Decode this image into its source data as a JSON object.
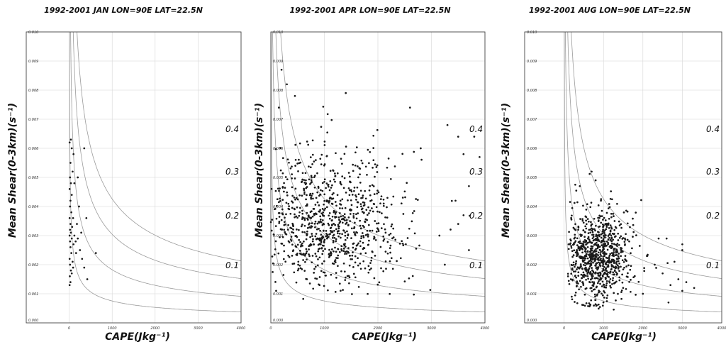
{
  "chart_data": [
    {
      "type": "scatter",
      "title": "1992-2001 JAN LON=90E LAT=22.5N",
      "xlabel": "CAPE(Jkg⁻¹)",
      "ylabel": "Mean Shear(0-3km)(s⁻¹)",
      "xlim": [
        -1000,
        4000
      ],
      "ylim": [
        0,
        0.01
      ],
      "xticks": [
        "0",
        "1000",
        "2000",
        "3000",
        "4000"
      ],
      "yticks": [
        "0.000",
        "0.001",
        "0.002",
        "0.003",
        "0.004",
        "0.005",
        "0.006",
        "0.007",
        "0.008",
        "0.009",
        "0.010"
      ],
      "grid": true,
      "contours": [
        {
          "label": "0.1",
          "value": 0.1,
          "label_at": [
            0.1,
            0.0019
          ]
        },
        {
          "label": "0.2",
          "value": 0.2,
          "label_at": [
            0.1,
            0.0034
          ]
        },
        {
          "label": "0.3",
          "value": 0.3,
          "label_at": [
            0.1,
            0.0049
          ]
        },
        {
          "label": "0.4",
          "value": 0.4,
          "label_at": [
            0.1,
            0.0064
          ]
        }
      ],
      "points": [
        [
          10,
          0.0013
        ],
        [
          30,
          0.0014
        ],
        [
          15,
          0.0016
        ],
        [
          40,
          0.0018
        ],
        [
          20,
          0.002
        ],
        [
          60,
          0.0017
        ],
        [
          10,
          0.0022
        ],
        [
          50,
          0.0024
        ],
        [
          30,
          0.0026
        ],
        [
          80,
          0.0021
        ],
        [
          20,
          0.0028
        ],
        [
          60,
          0.0029
        ],
        [
          10,
          0.003
        ],
        [
          100,
          0.0027
        ],
        [
          40,
          0.0031
        ],
        [
          20,
          0.0032
        ],
        [
          150,
          0.0028
        ],
        [
          70,
          0.0033
        ],
        [
          30,
          0.0034
        ],
        [
          10,
          0.0036
        ],
        [
          120,
          0.003
        ],
        [
          50,
          0.0038
        ],
        [
          20,
          0.004
        ],
        [
          90,
          0.0036
        ],
        [
          30,
          0.0042
        ],
        [
          60,
          0.0044
        ],
        [
          10,
          0.0046
        ],
        [
          200,
          0.0029
        ],
        [
          250,
          0.0025
        ],
        [
          300,
          0.0022
        ],
        [
          350,
          0.0019
        ],
        [
          280,
          0.0031
        ],
        [
          180,
          0.0034
        ],
        [
          40,
          0.0048
        ],
        [
          20,
          0.005
        ],
        [
          80,
          0.0052
        ],
        [
          120,
          0.0048
        ],
        [
          200,
          0.005
        ],
        [
          30,
          0.0055
        ],
        [
          100,
          0.0058
        ],
        [
          10,
          0.0062
        ],
        [
          40,
          0.0063
        ],
        [
          60,
          0.006
        ],
        [
          400,
          0.0036
        ],
        [
          420,
          0.0015
        ],
        [
          620,
          0.0024
        ],
        [
          350,
          0.006
        ],
        [
          230,
          0.004
        ],
        [
          160,
          0.0024
        ],
        [
          90,
          0.0019
        ]
      ]
    },
    {
      "type": "scatter",
      "title": "1992-2001 APR LON=90E LAT=22.5N",
      "xlabel": "CAPE(Jkg⁻¹)",
      "ylabel": "Mean Shear(0-3km)(s⁻¹)",
      "xlim": [
        0,
        4000
      ],
      "ylim": [
        0,
        0.01
      ],
      "xticks": [
        "0",
        "1000",
        "2000",
        "3000",
        "4000"
      ],
      "yticks": [
        "0.000",
        "0.001",
        "0.002",
        "0.003",
        "0.004",
        "0.005",
        "0.006",
        "0.007",
        "0.008",
        "0.009",
        "0.010"
      ],
      "grid": true,
      "contours": [
        {
          "label": "0.1",
          "value": 0.1,
          "label_at": [
            0.1,
            0.0019
          ]
        },
        {
          "label": "0.2",
          "value": 0.2,
          "label_at": [
            0.1,
            0.0034
          ]
        },
        {
          "label": "0.3",
          "value": 0.3,
          "label_at": [
            0.1,
            0.0049
          ]
        },
        {
          "label": "0.4",
          "value": 0.4,
          "label_at": [
            0.1,
            0.0064
          ]
        }
      ],
      "cloud": {
        "count": 900,
        "x_mean": 1050,
        "x_sd": 650,
        "y_mean": 0.0035,
        "y_sd": 0.0012,
        "x_min": 0,
        "x_max": 3900,
        "y_min": 0.0008,
        "y_max": 0.0088
      },
      "extra_points": [
        [
          200,
          0.0087
        ],
        [
          300,
          0.0082
        ],
        [
          450,
          0.0078
        ],
        [
          150,
          0.0074
        ],
        [
          1400,
          0.0079
        ],
        [
          2600,
          0.0074
        ],
        [
          3300,
          0.0068
        ],
        [
          3500,
          0.0064
        ],
        [
          3800,
          0.0064
        ],
        [
          3600,
          0.0058
        ],
        [
          2800,
          0.006
        ],
        [
          3900,
          0.0057
        ],
        [
          3700,
          0.0047
        ],
        [
          3500,
          0.0034
        ],
        [
          3700,
          0.0025
        ],
        [
          3150,
          0.003
        ],
        [
          3450,
          0.0042
        ],
        [
          3250,
          0.002
        ],
        [
          100,
          0.0011
        ],
        [
          3600,
          0.0037
        ]
      ]
    },
    {
      "type": "scatter",
      "title": "1992-2001 AUG LON=90E LAT=22.5N",
      "xlabel": "CAPE(Jkg⁻¹)",
      "ylabel": "Mean Shear(0-3km)(s⁻¹)",
      "xlim": [
        -1000,
        4000
      ],
      "ylim": [
        0,
        0.01
      ],
      "xticks": [
        "0",
        "1000",
        "2000",
        "3000",
        "4000"
      ],
      "yticks": [
        "0.000",
        "0.001",
        "0.002",
        "0.003",
        "0.004",
        "0.005",
        "0.006",
        "0.007",
        "0.008",
        "0.009",
        "0.010"
      ],
      "grid": true,
      "contours": [
        {
          "label": "0.1",
          "value": 0.1,
          "label_at": [
            0.1,
            0.0019
          ]
        },
        {
          "label": "0.2",
          "value": 0.2,
          "label_at": [
            0.1,
            0.0034
          ]
        },
        {
          "label": "0.3",
          "value": 0.3,
          "label_at": [
            0.1,
            0.0049
          ]
        },
        {
          "label": "0.4",
          "value": 0.4,
          "label_at": [
            0.1,
            0.0064
          ]
        }
      ],
      "cloud": {
        "count": 850,
        "x_mean": 850,
        "x_sd": 380,
        "y_mean": 0.0023,
        "y_sd": 0.0008,
        "x_min": 100,
        "x_max": 3000,
        "y_min": 0.0004,
        "y_max": 0.0052
      },
      "extra_points": [
        [
          700,
          0.0052
        ],
        [
          800,
          0.0049
        ],
        [
          400,
          0.0047
        ],
        [
          2400,
          0.0029
        ],
        [
          2600,
          0.0029
        ],
        [
          3000,
          0.0027
        ],
        [
          3000,
          0.0025
        ],
        [
          2100,
          0.0023
        ],
        [
          2800,
          0.0021
        ],
        [
          2900,
          0.0015
        ],
        [
          3100,
          0.0014
        ],
        [
          3300,
          0.0012
        ],
        [
          2650,
          0.0007
        ],
        [
          3000,
          0.0011
        ],
        [
          2500,
          0.0017
        ],
        [
          2300,
          0.002
        ],
        [
          2700,
          0.0013
        ],
        [
          2000,
          0.001
        ],
        [
          100,
          0.0016
        ],
        [
          150,
          0.0027
        ]
      ]
    }
  ]
}
